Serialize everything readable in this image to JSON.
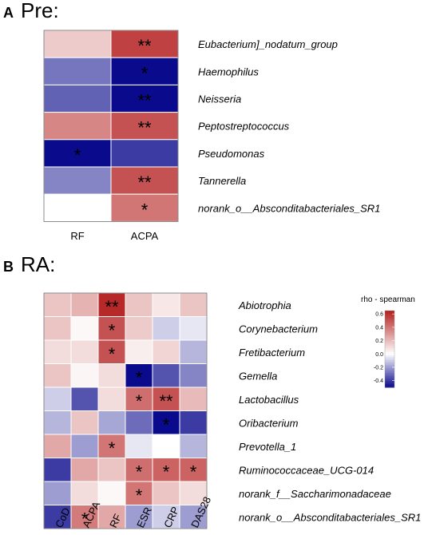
{
  "chart_data": [
    {
      "type": "heatmap",
      "panel_letter": "A",
      "title": "Pre:",
      "rows": [
        "Eubacterium]_nodatum_group",
        "Haemophilus",
        "Neisseria",
        "Peptostreptococcus",
        "Pseudomonas",
        "Tannerella",
        "norank_o__Absconditabacteriales_SR1"
      ],
      "columns": [
        "RF",
        "ACPA"
      ],
      "values": [
        [
          0.15,
          0.55
        ],
        [
          -0.28,
          -0.5
        ],
        [
          -0.32,
          -0.6
        ],
        [
          0.35,
          0.5
        ],
        [
          -0.55,
          -0.4
        ],
        [
          -0.25,
          0.5
        ],
        [
          0.0,
          0.4
        ]
      ],
      "significance": [
        [
          "",
          "**"
        ],
        [
          "",
          "*"
        ],
        [
          "",
          "**"
        ],
        [
          "",
          "**"
        ],
        [
          "*",
          ""
        ],
        [
          "",
          "**"
        ],
        [
          "",
          "*"
        ]
      ]
    },
    {
      "type": "heatmap",
      "panel_letter": "B",
      "title": "RA:",
      "rows": [
        "Abiotrophia",
        "Corynebacterium",
        "Fretibacterium",
        "Gemella",
        "Lactobacillus",
        "Oribacterium",
        "Prevotella_1",
        "Ruminococcaceae_UCG-014",
        "norank_f__Saccharimonadaceae",
        "norank_o__Absconditabacteriales_SR1"
      ],
      "columns": [
        "CoD",
        "ACPA",
        "RF",
        "ESR",
        "CRP",
        "DAS28"
      ],
      "values": [
        [
          0.17,
          0.22,
          0.62,
          0.17,
          0.07,
          0.17
        ],
        [
          0.17,
          0.02,
          0.5,
          0.15,
          -0.1,
          -0.05
        ],
        [
          0.1,
          0.1,
          0.5,
          0.05,
          0.12,
          -0.15
        ],
        [
          0.17,
          0.03,
          0.1,
          -0.5,
          -0.35,
          -0.25
        ],
        [
          -0.1,
          -0.35,
          0.1,
          0.42,
          0.5,
          0.2
        ],
        [
          -0.15,
          0.17,
          -0.18,
          -0.3,
          -0.55,
          -0.4
        ],
        [
          0.25,
          -0.2,
          0.4,
          -0.05,
          0.0,
          -0.15
        ],
        [
          -0.4,
          0.25,
          0.17,
          0.42,
          0.45,
          0.45
        ],
        [
          -0.2,
          0.1,
          0.02,
          0.4,
          0.17,
          0.1
        ],
        [
          -0.4,
          0.38,
          0.25,
          -0.2,
          -0.1,
          -0.2
        ]
      ],
      "significance": [
        [
          "",
          "",
          "**",
          "",
          "",
          ""
        ],
        [
          "",
          "",
          "*",
          "",
          "",
          ""
        ],
        [
          "",
          "",
          "*",
          "",
          "",
          ""
        ],
        [
          "",
          "",
          "",
          "*",
          "",
          ""
        ],
        [
          "",
          "",
          "",
          "*",
          "**",
          ""
        ],
        [
          "",
          "",
          "",
          "",
          "*",
          ""
        ],
        [
          "",
          "",
          "*",
          "",
          "",
          ""
        ],
        [
          "",
          "",
          "",
          "*",
          "*",
          "*"
        ],
        [
          "",
          "",
          "",
          "*",
          "",
          ""
        ],
        [
          "",
          "*",
          "",
          "",
          "",
          ""
        ]
      ],
      "legend": {
        "title": "rho - spearman",
        "ticks": [
          "0.6",
          "0.4",
          "0.2",
          "0.0",
          "-0.2",
          "-0.4"
        ],
        "tick_values": [
          0.6,
          0.4,
          0.2,
          0.0,
          -0.2,
          -0.4
        ],
        "range": [
          -0.5,
          0.65
        ]
      }
    }
  ],
  "colors": {
    "negative": "#0a0a8c",
    "neutral": "#ffffff",
    "positive": "#b41e1e",
    "grid": "#ffffff",
    "frame": "#444444"
  }
}
